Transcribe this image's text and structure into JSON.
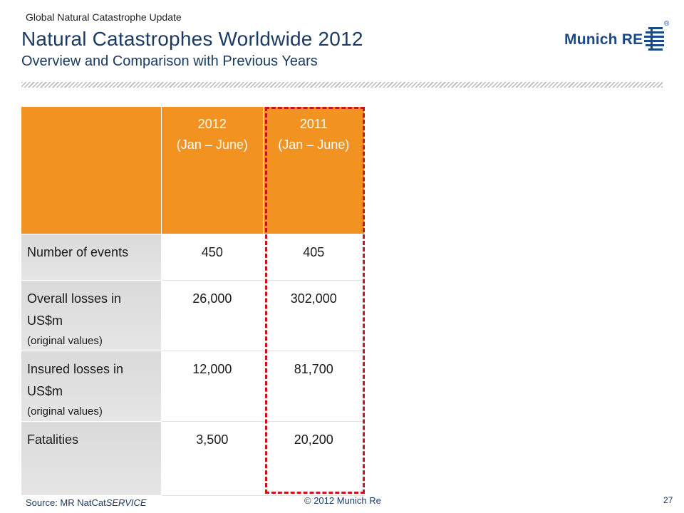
{
  "header": {
    "kicker": "Global Natural Catastrophe Update",
    "title": "Natural Catastrophes Worldwide 2012",
    "subtitle": "Overview and Comparison with Previous Years"
  },
  "logo": {
    "text": "Munich RE",
    "registered": "®",
    "brand_color": "#1a4a8a"
  },
  "table": {
    "header_color": "#f29321",
    "columns": [
      {
        "year": "2012",
        "period": "(Jan – June)"
      },
      {
        "year": "2011",
        "period": "(Jan – June)"
      }
    ],
    "rows": [
      {
        "label": "Number of events",
        "note": "",
        "values": [
          "450",
          "405"
        ]
      },
      {
        "label": "Overall losses in",
        "label2": "US$m",
        "note": "(original values)",
        "values": [
          "26,000",
          "302,000"
        ]
      },
      {
        "label": "Insured losses in",
        "label2": "US$m",
        "note": "(original values)",
        "values": [
          "12,000",
          "81,700"
        ]
      },
      {
        "label": "Fatalities",
        "note": "",
        "values": [
          "3,500",
          "20,200"
        ]
      }
    ],
    "highlight_color": "#c8141e"
  },
  "footer": {
    "source_prefix": "Source: MR NatCat",
    "source_italic": "SERVICE",
    "copyright": "© 2012 Munich Re",
    "page": "27"
  }
}
